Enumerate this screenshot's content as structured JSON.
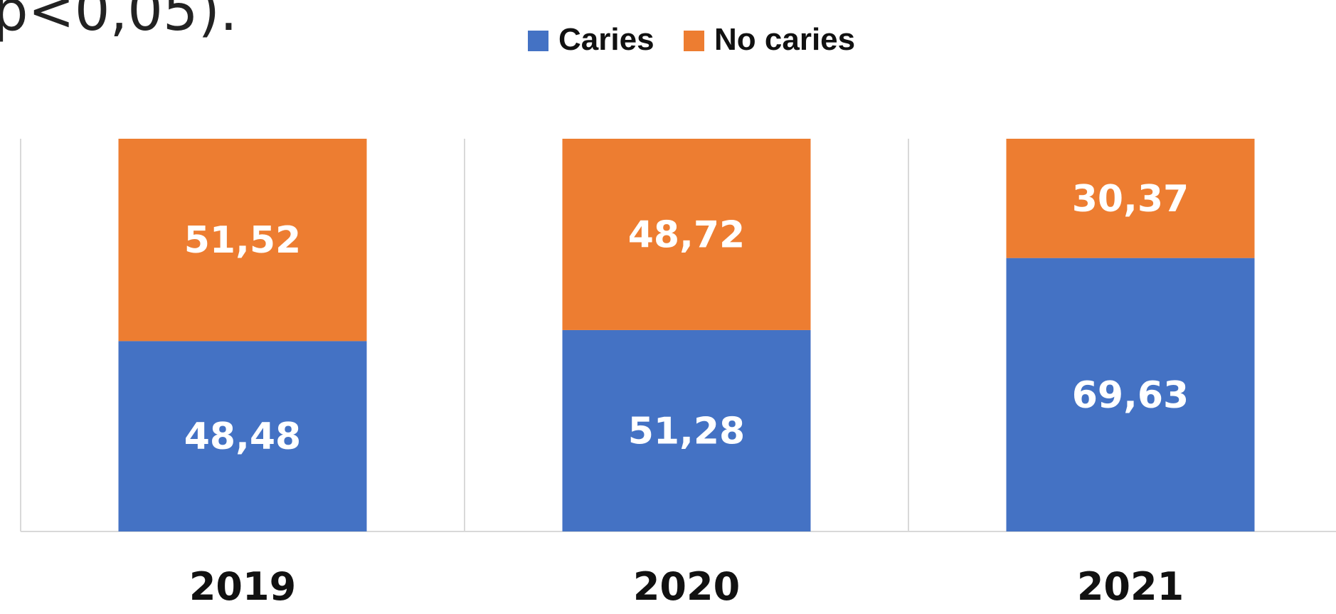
{
  "header_fragment": "p<0,05).",
  "chart_data": {
    "type": "bar",
    "stacked": true,
    "categories": [
      "2019",
      "2020",
      "2021"
    ],
    "series": [
      {
        "name": "Caries",
        "values": [
          48.48,
          51.28,
          69.63
        ],
        "value_labels": [
          "48,48",
          "51,28",
          "69,63"
        ],
        "color": "#4472C4"
      },
      {
        "name": "No caries",
        "values": [
          51.52,
          48.72,
          30.37
        ],
        "value_labels": [
          "51,52",
          "48,72",
          "30,37"
        ],
        "color": "#ED7D31"
      }
    ],
    "ylim": [
      0,
      100
    ],
    "legend_position": "top-center",
    "grid": "vertical",
    "colors": {
      "grid": "#D9D9D9",
      "label": "#FFFFFF"
    }
  }
}
